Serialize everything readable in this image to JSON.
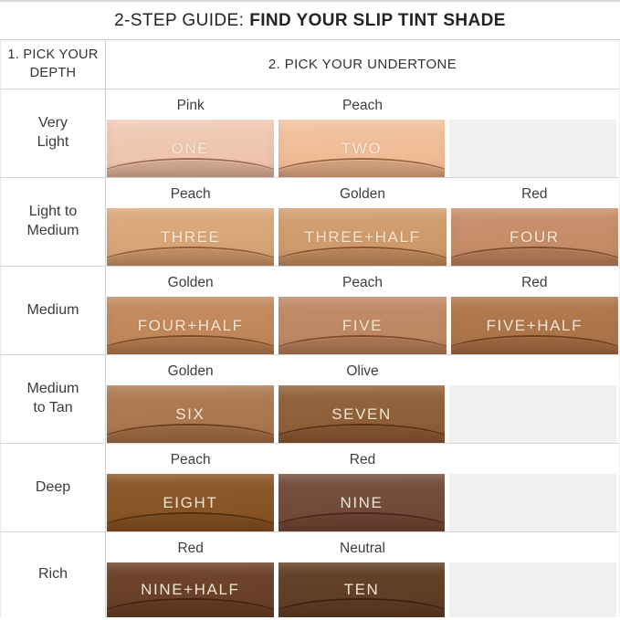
{
  "title": {
    "prefix": "2-STEP GUIDE:",
    "emphasis": "FIND YOUR SLIP TINT SHADE"
  },
  "table": {
    "depth_header": "1. PICK YOUR\nDEPTH",
    "undertone_header": "2. PICK YOUR UNDERTONE",
    "rows": [
      {
        "depth": "Very\nLight",
        "cells": [
          {
            "undertone": "Pink",
            "shade": "ONE",
            "color_top": "#f1cdb9",
            "color_bottom": "#ecc0a7",
            "line": "#8a5643"
          },
          {
            "undertone": "Peach",
            "shade": "TWO",
            "color_top": "#f3c5a3",
            "color_bottom": "#edb68d",
            "line": "#86502f"
          },
          {
            "empty": true
          }
        ]
      },
      {
        "depth": "Light to\nMedium",
        "cells": [
          {
            "undertone": "Peach",
            "shade": "THREE",
            "color_top": "#ddac80",
            "color_bottom": "#d5a071",
            "line": "#7c4b2a"
          },
          {
            "undertone": "Golden",
            "shade": "THREE+HALF",
            "color_top": "#d4a274",
            "color_bottom": "#cb9566",
            "line": "#74441f"
          },
          {
            "undertone": "Red",
            "shade": "FOUR",
            "color_top": "#ca9270",
            "color_bottom": "#c18861",
            "line": "#6f3c22"
          }
        ]
      },
      {
        "depth": "Medium",
        "cells": [
          {
            "undertone": "Golden",
            "shade": "FOUR+HALF",
            "color_top": "#c58e62",
            "color_bottom": "#bc8355",
            "line": "#6b3d1c"
          },
          {
            "undertone": "Peach",
            "shade": "FIVE",
            "color_top": "#c38d6b",
            "color_bottom": "#ba845e",
            "line": "#6d3e20"
          },
          {
            "undertone": "Red",
            "shade": "FIVE+HALF",
            "color_top": "#b27b50",
            "color_bottom": "#a87145",
            "line": "#5f3318"
          }
        ]
      },
      {
        "depth": "Medium\nto Tan",
        "cells": [
          {
            "undertone": "Golden",
            "shade": "SIX",
            "color_top": "#b17e56",
            "color_bottom": "#a6734a",
            "line": "#5c3014"
          },
          {
            "undertone": "Olive",
            "shade": "SEVEN",
            "color_top": "#956740",
            "color_bottom": "#8a5a33",
            "line": "#4c2710"
          },
          {
            "empty": true
          }
        ]
      },
      {
        "depth": "Deep",
        "cells": [
          {
            "undertone": "Peach",
            "shade": "EIGHT",
            "color_top": "#8f5b2d",
            "color_bottom": "#845020",
            "line": "#45250c"
          },
          {
            "undertone": "Red",
            "shade": "NINE",
            "color_top": "#785140",
            "color_bottom": "#6e4535",
            "line": "#3d2015"
          },
          {
            "empty": true
          }
        ]
      },
      {
        "depth": "Rich",
        "cells": [
          {
            "undertone": "Red",
            "shade": "NINE+HALF",
            "color_top": "#70462d",
            "color_bottom": "#653c24",
            "line": "#381d0e"
          },
          {
            "undertone": "Neutral",
            "shade": "TEN",
            "color_top": "#664429",
            "color_bottom": "#5c3b23",
            "line": "#33190c"
          },
          {
            "empty": true
          }
        ]
      }
    ]
  },
  "colors": {
    "empty_cell": "#f1f0ee",
    "border": "#d2d2d2",
    "title_text": "#242424",
    "shade_label_text": "#f9edde"
  }
}
